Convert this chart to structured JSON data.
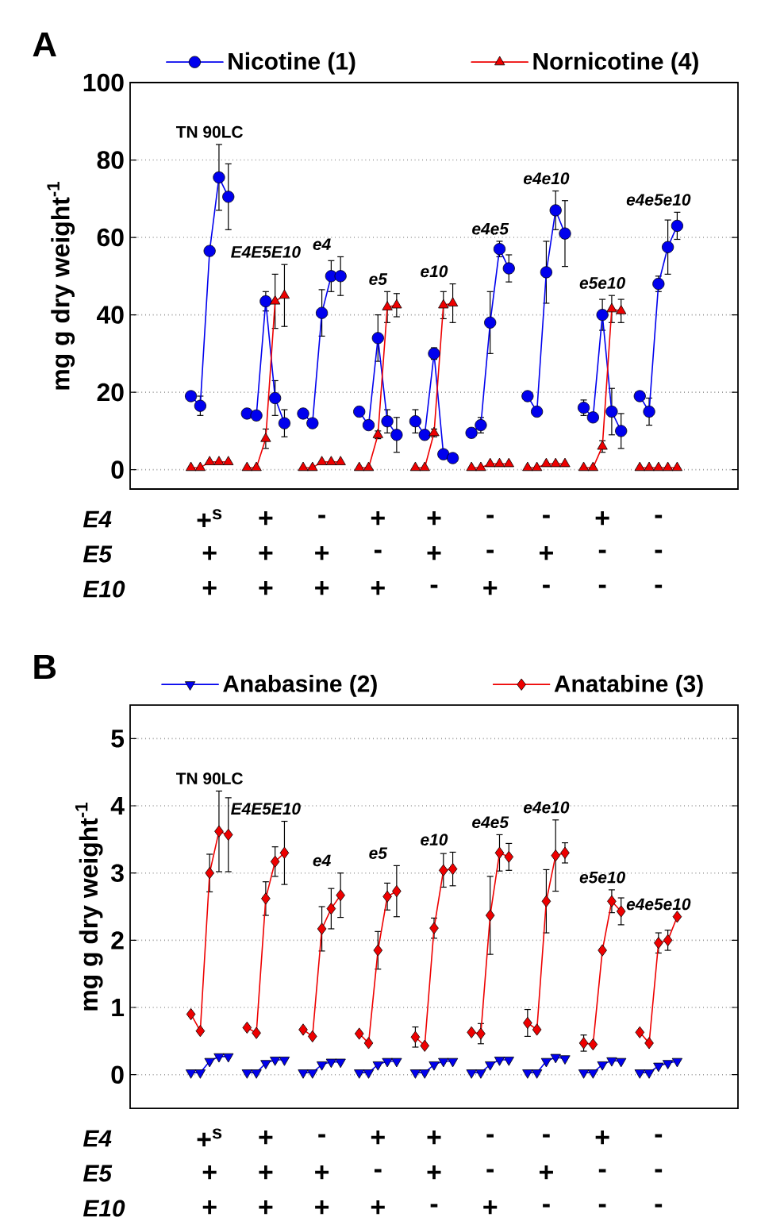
{
  "chart_data": [
    {
      "type": "line",
      "title": "A",
      "ylabel": "mg g dry weight$^{-1}$",
      "categories": [
        null,
        null,
        null,
        null,
        null,
        null,
        null,
        null,
        null,
        null,
        null,
        null,
        null,
        null,
        null,
        null,
        null,
        null,
        null,
        null,
        null,
        null,
        null,
        null,
        null,
        null,
        null,
        null,
        null,
        null,
        null,
        null,
        null,
        null,
        null,
        null,
        null,
        null,
        null,
        null,
        null,
        null,
        null,
        null,
        null,
        null,
        null,
        null,
        null,
        null,
        null,
        null,
        null,
        null,
        null,
        null,
        null,
        null,
        null,
        null,
        null,
        null,
        null,
        null,
        null
      ],
      "series": [
        {
          "name": "Nicotine (1)",
          "color": "#0000ee",
          "marker": "circle",
          "values": [
            null,
            null,
            null,
            null,
            null,
            null,
            19,
            16.5,
            56.5,
            75.5,
            70.5,
            null,
            14.5,
            14,
            43.5,
            18.5,
            12,
            null,
            14.5,
            12,
            40.5,
            50,
            50,
            null,
            15,
            11.5,
            34,
            12.5,
            9,
            null,
            12.5,
            9,
            30,
            4,
            3,
            null,
            9.5,
            11.5,
            38,
            57,
            52,
            null,
            19,
            15,
            51,
            67,
            61,
            null,
            16,
            13.5,
            40,
            15,
            10,
            null,
            19,
            15,
            48,
            57.5,
            63,
            null,
            null,
            null,
            null,
            null,
            null
          ],
          "errors": [
            null,
            null,
            null,
            null,
            null,
            null,
            1,
            2.5,
            null,
            8.5,
            8.5,
            null,
            1,
            1,
            2.5,
            4.5,
            3.5,
            null,
            1,
            1,
            6,
            4,
            5,
            null,
            1,
            1,
            6,
            3,
            4.5,
            null,
            3,
            1,
            1.5,
            0.5,
            0.5,
            null,
            0.5,
            2,
            8,
            2,
            3.5,
            null,
            0.5,
            0.5,
            8,
            5,
            8.5,
            null,
            2,
            1,
            4,
            6,
            4.5,
            null,
            0.5,
            3.5,
            2,
            7,
            3.5,
            null,
            null,
            null,
            null,
            null,
            null
          ]
        },
        {
          "name": "Nornicotine (4)",
          "color": "#ee0000",
          "marker": "triangle",
          "values": [
            null,
            null,
            null,
            null,
            null,
            null,
            0.5,
            0.5,
            2,
            2,
            2,
            null,
            0.5,
            0.5,
            8,
            43.5,
            45,
            null,
            0.5,
            0.5,
            2,
            2,
            2,
            null,
            0.5,
            0.5,
            9,
            42,
            42.5,
            null,
            0.5,
            0.5,
            9.5,
            42.5,
            43,
            null,
            0.5,
            0.5,
            1.5,
            1.5,
            1.5,
            null,
            0.5,
            0.5,
            1.5,
            1.5,
            1.5,
            null,
            0.5,
            0.5,
            6,
            41.5,
            41,
            null,
            0.5,
            0.5,
            0.5,
            0.5,
            0.5,
            null,
            null,
            null,
            null,
            null,
            null
          ],
          "errors": [
            null,
            null,
            null,
            null,
            null,
            null,
            null,
            null,
            null,
            null,
            null,
            null,
            null,
            null,
            2.5,
            7,
            8,
            null,
            null,
            null,
            null,
            null,
            null,
            null,
            null,
            null,
            1,
            4,
            3,
            null,
            null,
            null,
            1,
            3.5,
            5,
            null,
            null,
            null,
            null,
            null,
            null,
            null,
            null,
            null,
            null,
            null,
            null,
            null,
            null,
            null,
            1.5,
            3.5,
            3,
            null,
            null,
            null,
            null,
            null,
            null,
            null,
            null,
            null,
            null,
            null,
            null
          ]
        }
      ],
      "ylim": [
        -5,
        100
      ],
      "yticks": [
        0,
        20,
        40,
        60,
        80,
        100
      ],
      "grid": "y",
      "legend": "top",
      "annotations": [
        "TN 90LC",
        "E4E5E10",
        "e4",
        "e5",
        "e10",
        "e4e5",
        "e4e10",
        "e5e10",
        "e4e5e10",
        "E4",
        "E5",
        "E10",
        "+$^{s}$",
        "+",
        "-",
        "+",
        "+",
        "-",
        "-",
        "+",
        "-",
        "+",
        "+",
        "+",
        "-",
        "+",
        "-",
        "+",
        "-",
        "-",
        "+",
        "+",
        "+",
        "+",
        "-",
        "+",
        "-",
        "-",
        "-"
      ]
    },
    {
      "type": "line",
      "title": "B",
      "ylabel": "mg g dry weight$^{-1}$",
      "categories": [
        null,
        null,
        null,
        null,
        null,
        null,
        null,
        null,
        null,
        null,
        null,
        null,
        null,
        null,
        null,
        null,
        null,
        null,
        null,
        null,
        null,
        null,
        null,
        null,
        null,
        null,
        null,
        null,
        null,
        null,
        null,
        null,
        null,
        null,
        null,
        null,
        null,
        null,
        null,
        null,
        null,
        null,
        null,
        null,
        null,
        null,
        null,
        null,
        null,
        null,
        null,
        null,
        null,
        null,
        null,
        null,
        null,
        null,
        null,
        null,
        null,
        null,
        null,
        null,
        null
      ],
      "series": [
        {
          "name": "Anabasine (2)",
          "color": "#0000ee",
          "marker": "triangle-down",
          "values": [
            null,
            null,
            null,
            null,
            null,
            null,
            0.03,
            0.03,
            0.2,
            0.27,
            0.27,
            null,
            0.03,
            0.03,
            0.17,
            0.22,
            0.22,
            null,
            0.03,
            0.03,
            0.15,
            0.19,
            0.19,
            null,
            0.03,
            0.03,
            0.15,
            0.2,
            0.2,
            null,
            0.03,
            0.03,
            0.15,
            0.2,
            0.2,
            null,
            0.03,
            0.03,
            0.15,
            0.22,
            0.22,
            null,
            0.03,
            0.03,
            0.2,
            0.26,
            0.24,
            null,
            0.03,
            0.03,
            0.15,
            0.21,
            0.2,
            null,
            0.03,
            0.03,
            0.13,
            0.17,
            0.2,
            null,
            null,
            null,
            null,
            null,
            null
          ]
        },
        {
          "name": "Anatabine (3)",
          "color": "#ee0000",
          "marker": "diamond",
          "values": [
            null,
            null,
            null,
            null,
            null,
            null,
            0.9,
            0.65,
            3.0,
            3.62,
            3.57,
            null,
            0.7,
            0.62,
            2.62,
            3.17,
            3.3,
            null,
            0.67,
            0.57,
            2.17,
            2.47,
            2.67,
            null,
            0.61,
            0.47,
            1.85,
            2.65,
            2.73,
            null,
            0.56,
            0.43,
            2.18,
            3.04,
            3.06,
            null,
            0.63,
            0.61,
            2.37,
            3.3,
            3.24,
            null,
            0.77,
            0.67,
            2.58,
            3.26,
            3.3,
            null,
            0.47,
            0.45,
            1.85,
            2.58,
            2.43,
            null,
            0.63,
            0.47,
            1.96,
            2.0,
            2.35,
            null,
            null,
            null,
            null,
            null,
            null
          ],
          "errors": [
            null,
            null,
            null,
            null,
            null,
            null,
            null,
            null,
            0.28,
            0.6,
            0.55,
            null,
            null,
            null,
            0.25,
            0.22,
            0.47,
            null,
            null,
            null,
            0.33,
            0.3,
            0.33,
            null,
            null,
            null,
            0.28,
            0.2,
            0.38,
            null,
            0.15,
            null,
            0.15,
            0.25,
            0.25,
            null,
            null,
            0.15,
            0.58,
            0.27,
            0.2,
            null,
            0.2,
            null,
            0.47,
            0.53,
            0.15,
            null,
            0.12,
            null,
            null,
            0.17,
            0.2,
            null,
            null,
            null,
            0.15,
            0.15,
            null,
            null,
            null,
            null,
            null,
            null,
            null
          ]
        }
      ],
      "ylim": [
        -0.5,
        5.5
      ],
      "yticks": [
        0,
        1,
        2,
        3,
        4,
        5
      ],
      "grid": "y",
      "legend": "top",
      "annotations": [
        "TN 90LC",
        "E4E5E10",
        "e4",
        "e5",
        "e10",
        "e4e5",
        "e4e10",
        "e5e10",
        "e4e5e10",
        "E4",
        "E5",
        "E10",
        "+$^{s}$",
        "+",
        "-",
        "+",
        "+",
        "-",
        "-",
        "+",
        "-",
        "+",
        "+",
        "+",
        "-",
        "+",
        "-",
        "+",
        "-",
        "-",
        "+",
        "+",
        "+",
        "+",
        "-",
        "+",
        "-",
        "-",
        "-"
      ]
    }
  ]
}
